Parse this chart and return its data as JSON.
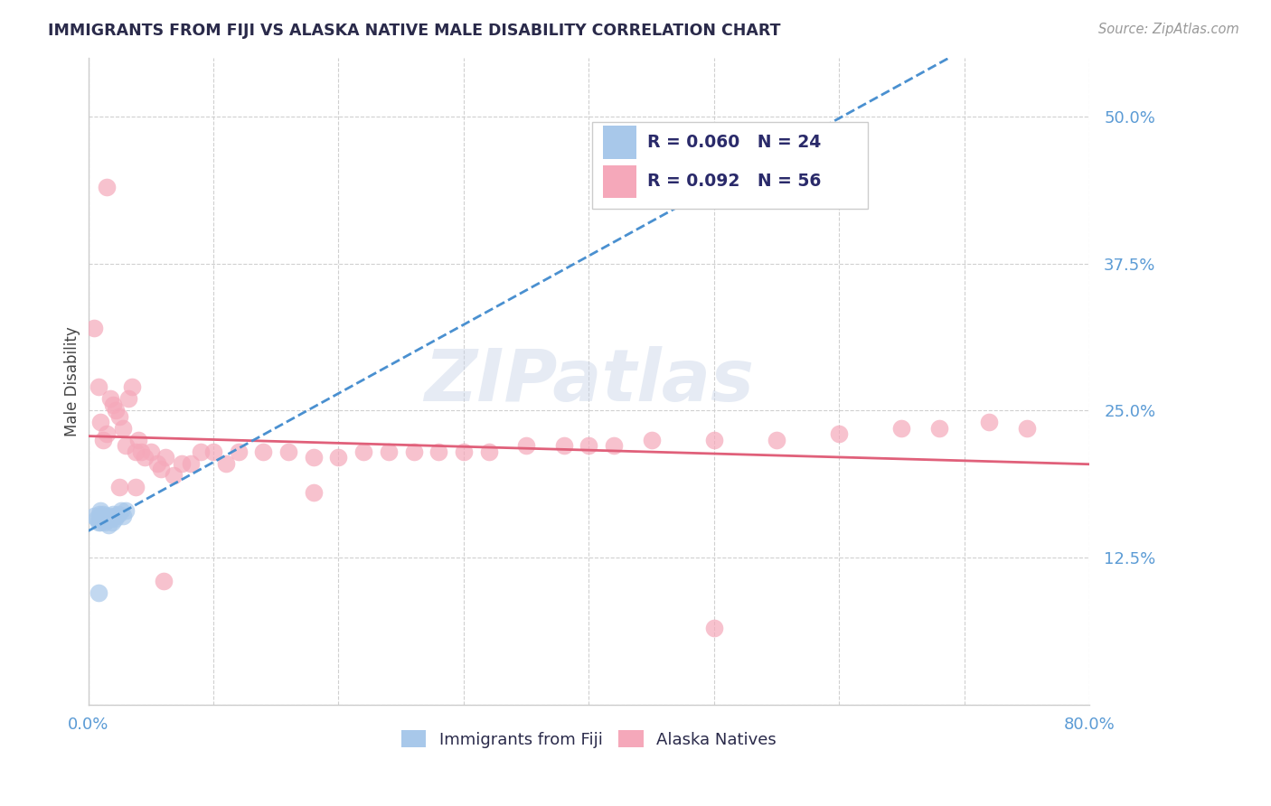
{
  "title": "IMMIGRANTS FROM FIJI VS ALASKA NATIVE MALE DISABILITY CORRELATION CHART",
  "source": "Source: ZipAtlas.com",
  "ylabel": "Male Disability",
  "xlim": [
    0.0,
    0.8
  ],
  "ylim": [
    0.0,
    0.55
  ],
  "yticks": [
    0.0,
    0.125,
    0.25,
    0.375,
    0.5
  ],
  "ytick_labels": [
    "",
    "12.5%",
    "25.0%",
    "37.5%",
    "50.0%"
  ],
  "xticks": [
    0.0,
    0.1,
    0.2,
    0.3,
    0.4,
    0.5,
    0.6,
    0.7,
    0.8
  ],
  "xtick_labels": [
    "0.0%",
    "",
    "",
    "",
    "",
    "",
    "",
    "",
    "80.0%"
  ],
  "fiji_color": "#a8c8ea",
  "alaska_color": "#f5a8ba",
  "fiji_line_color": "#4a90d0",
  "alaska_line_color": "#e0607a",
  "background_color": "#ffffff",
  "grid_color": "#d0d0d0",
  "legend_r_fiji": "R = 0.060",
  "legend_n_fiji": "N = 24",
  "legend_r_alaska": "R = 0.092",
  "legend_n_alaska": "N = 56",
  "fiji_x": [
    0.005,
    0.007,
    0.008,
    0.009,
    0.01,
    0.01,
    0.01,
    0.011,
    0.012,
    0.013,
    0.014,
    0.015,
    0.016,
    0.017,
    0.018,
    0.019,
    0.02,
    0.021,
    0.022,
    0.024,
    0.026,
    0.028,
    0.03,
    0.008
  ],
  "fiji_y": [
    0.16,
    0.158,
    0.155,
    0.162,
    0.165,
    0.16,
    0.155,
    0.158,
    0.162,
    0.155,
    0.16,
    0.157,
    0.153,
    0.16,
    0.158,
    0.155,
    0.162,
    0.158,
    0.16,
    0.162,
    0.165,
    0.16,
    0.165,
    0.095
  ],
  "alaska_x": [
    0.005,
    0.008,
    0.01,
    0.012,
    0.015,
    0.018,
    0.02,
    0.022,
    0.025,
    0.028,
    0.03,
    0.032,
    0.035,
    0.038,
    0.04,
    0.042,
    0.045,
    0.05,
    0.055,
    0.058,
    0.062,
    0.068,
    0.075,
    0.082,
    0.09,
    0.1,
    0.11,
    0.12,
    0.14,
    0.16,
    0.18,
    0.2,
    0.22,
    0.24,
    0.26,
    0.28,
    0.3,
    0.32,
    0.35,
    0.38,
    0.4,
    0.42,
    0.45,
    0.5,
    0.55,
    0.6,
    0.65,
    0.68,
    0.72,
    0.75,
    0.015,
    0.038,
    0.06,
    0.025,
    0.18,
    0.5
  ],
  "alaska_y": [
    0.32,
    0.27,
    0.24,
    0.225,
    0.23,
    0.26,
    0.255,
    0.25,
    0.245,
    0.235,
    0.22,
    0.26,
    0.27,
    0.215,
    0.225,
    0.215,
    0.21,
    0.215,
    0.205,
    0.2,
    0.21,
    0.195,
    0.205,
    0.205,
    0.215,
    0.215,
    0.205,
    0.215,
    0.215,
    0.215,
    0.21,
    0.21,
    0.215,
    0.215,
    0.215,
    0.215,
    0.215,
    0.215,
    0.22,
    0.22,
    0.22,
    0.22,
    0.225,
    0.225,
    0.225,
    0.23,
    0.235,
    0.235,
    0.24,
    0.235,
    0.44,
    0.185,
    0.105,
    0.185,
    0.18,
    0.065
  ]
}
